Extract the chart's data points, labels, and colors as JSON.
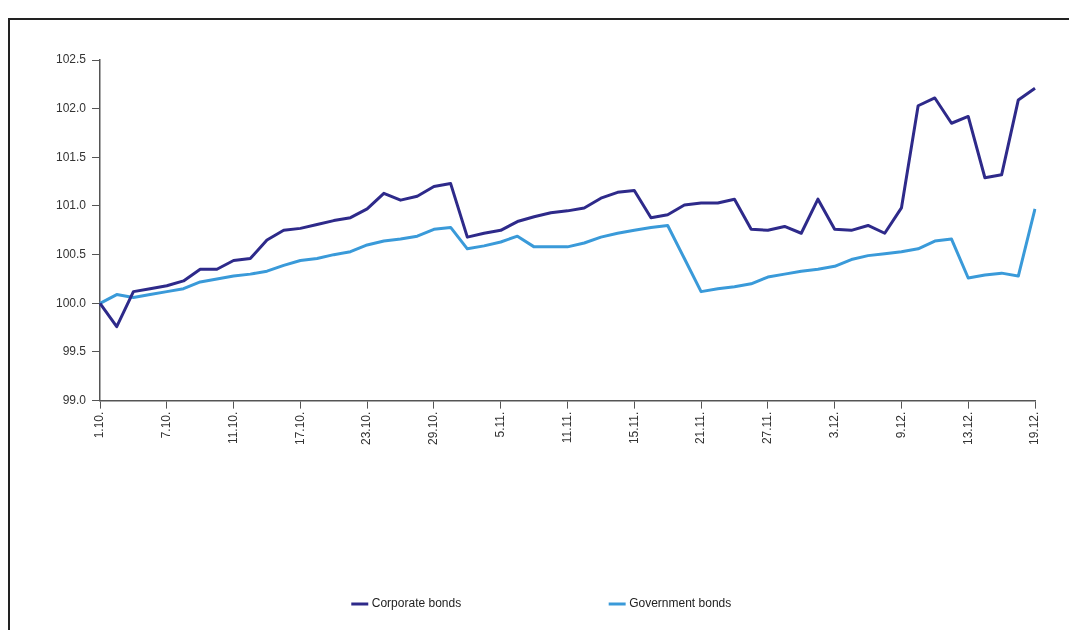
{
  "chart_data": {
    "type": "line",
    "categories": [
      "1.10.",
      null,
      null,
      null,
      "7.10.",
      null,
      null,
      null,
      "11.10.",
      null,
      null,
      null,
      "17.10.",
      null,
      null,
      null,
      "23.10.",
      null,
      null,
      null,
      "29.10.",
      null,
      null,
      null,
      "5.11.",
      null,
      null,
      null,
      "11.11.",
      null,
      null,
      null,
      "15.11.",
      null,
      null,
      null,
      "21.11.",
      null,
      null,
      null,
      "27.11.",
      null,
      null,
      null,
      "3.12.",
      null,
      null,
      null,
      "9.12.",
      null,
      null,
      null,
      "13.12.",
      null,
      null,
      null,
      "19.12."
    ],
    "series": [
      {
        "name": "Corporate bonds",
        "color": "#2e2a8a",
        "values": [
          100.0,
          99.76,
          100.12,
          100.15,
          100.18,
          100.23,
          100.35,
          100.35,
          100.44,
          100.46,
          100.65,
          100.75,
          100.77,
          100.81,
          100.85,
          100.88,
          100.97,
          101.13,
          101.06,
          101.1,
          101.2,
          101.23,
          100.68,
          100.72,
          100.75,
          100.84,
          100.89,
          100.93,
          100.95,
          100.98,
          101.08,
          101.14,
          101.16,
          100.88,
          100.91,
          101.01,
          101.03,
          101.03,
          101.07,
          100.76,
          100.75,
          100.79,
          100.72,
          101.07,
          100.76,
          100.75,
          100.8,
          100.72,
          100.98,
          102.03,
          102.11,
          101.85,
          101.92,
          101.29,
          101.32,
          102.09,
          102.21
        ]
      },
      {
        "name": "Government bonds",
        "color": "#3a9ad9",
        "values": [
          100.0,
          100.09,
          100.06,
          100.09,
          100.12,
          100.15,
          100.22,
          100.25,
          100.28,
          100.3,
          100.33,
          100.39,
          100.44,
          100.46,
          100.5,
          100.53,
          100.6,
          100.64,
          100.66,
          100.69,
          100.76,
          100.78,
          100.56,
          100.59,
          100.63,
          100.69,
          100.58,
          100.58,
          100.58,
          100.62,
          100.68,
          100.72,
          100.75,
          100.78,
          100.8,
          100.46,
          100.12,
          100.15,
          100.17,
          100.2,
          100.27,
          100.3,
          100.33,
          100.35,
          100.38,
          100.45,
          100.49,
          100.51,
          100.53,
          100.56,
          100.64,
          100.66,
          100.26,
          100.29,
          100.31,
          100.28,
          100.97
        ]
      }
    ],
    "ylim": [
      99.0,
      102.5
    ],
    "yticks": [
      {
        "value": 99,
        "label": "99.0"
      },
      99.5,
      {
        "value": 100,
        "label": "100.0"
      },
      100.5,
      {
        "value": 101,
        "label": "101.0"
      },
      101.5,
      {
        "value": 102,
        "label": "102.0"
      },
      102.5
    ],
    "grid": false,
    "legend": "bottom",
    "marker": "none",
    "line_style": "solid"
  }
}
